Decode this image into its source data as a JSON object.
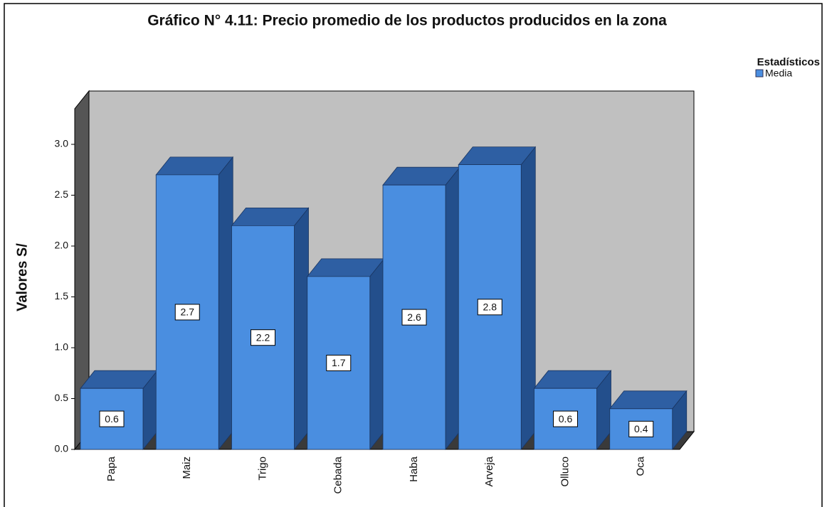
{
  "chart_data": {
    "type": "bar3d",
    "title": "Gráfico N° 4.11: Precio promedio de los productos producidos en la zona",
    "y_label": "Valores S/",
    "legend_title": "Estadísticos",
    "categories": [
      "Papa",
      "Maiz",
      "Trigo",
      "Cebada",
      "Haba",
      "Arveja",
      "Olluco",
      "Oca"
    ],
    "series": [
      {
        "name": "Media",
        "color": "#4a8ee0",
        "values": [
          0.6,
          2.7,
          2.2,
          1.7,
          2.6,
          2.8,
          0.6,
          0.4
        ]
      }
    ],
    "ylim": [
      0,
      3.35
    ],
    "yticks": [
      {
        "value": 0,
        "label": "0.0"
      },
      0.5,
      {
        "value": 1,
        "label": "1.0"
      },
      1.5,
      {
        "value": 2,
        "label": "2.0"
      },
      2.5,
      {
        "value": 3,
        "label": "3.0"
      }
    ],
    "legend": "top-right"
  }
}
